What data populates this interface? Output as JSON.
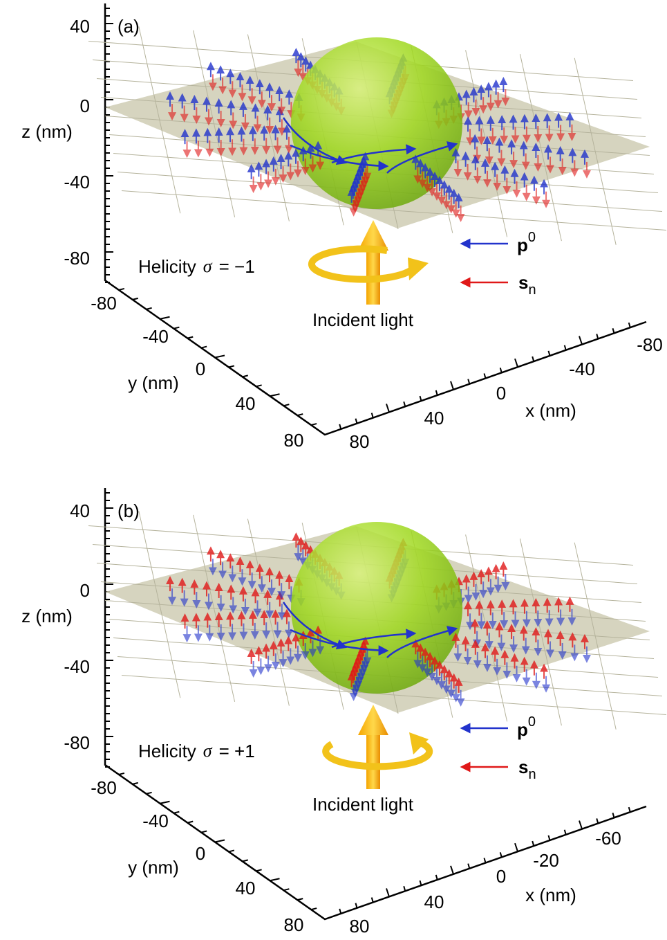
{
  "panels": [
    {
      "label": "(a)",
      "z_axis": {
        "title": "z (nm)",
        "ticks": [
          "40",
          "0",
          "-40",
          "-80"
        ]
      },
      "y_axis": {
        "title": "y (nm)",
        "ticks": [
          "-80",
          "-40",
          "0",
          "40",
          "80"
        ]
      },
      "x_axis": {
        "title": "x (nm)",
        "ticks": [
          "80",
          "40",
          "0",
          "-40",
          "-80"
        ]
      },
      "helicity": {
        "text": "Helicity",
        "symbol": "σ",
        "value": "= −1"
      },
      "incident": "Incident light",
      "legend": [
        {
          "symbol": "p",
          "script": "0"
        },
        {
          "symbol": "s",
          "script": "n"
        }
      ]
    },
    {
      "label": "(b)",
      "z_axis": {
        "title": "z (nm)",
        "ticks": [
          "40",
          "0",
          "-40",
          "-80"
        ]
      },
      "y_axis": {
        "title": "y (nm)",
        "ticks": [
          "-80",
          "-40",
          "0",
          "40",
          "80"
        ]
      },
      "x_axis": {
        "title": "x (nm)",
        "ticks": [
          "80",
          "40",
          "0",
          "-20",
          "-60"
        ]
      },
      "helicity": {
        "text": "Helicity",
        "symbol": "σ",
        "value": "= +1"
      },
      "incident": "Incident light",
      "legend": [
        {
          "symbol": "p",
          "script": "0"
        },
        {
          "symbol": "s",
          "script": "n"
        }
      ]
    }
  ]
}
